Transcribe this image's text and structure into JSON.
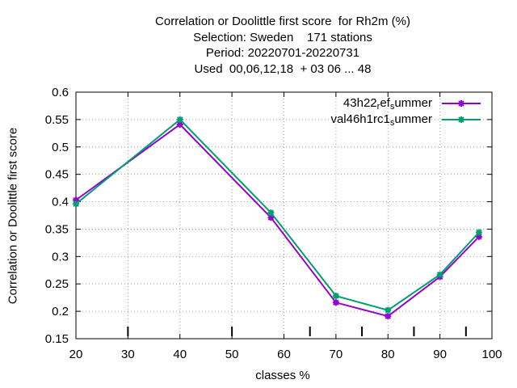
{
  "title": {
    "lines": [
      "Correlation or Doolittle first score  for Rh2m (%)",
      "Selection: Sweden    171 stations",
      "Period: 20220701-20220731",
      "Used  00,06,12,18  + 03 06 ... 48"
    ]
  },
  "legend": [
    {
      "prefix": "43h22",
      "sub1": "r",
      "mid": "ef",
      "sub2": "s",
      "suffix": "ummer",
      "color": "#9400d3"
    },
    {
      "prefix": "val46h1rc1",
      "sub1": "",
      "mid": "",
      "sub2": "s",
      "suffix": "ummer",
      "color": "#009e73"
    }
  ],
  "chart_data": {
    "type": "line",
    "title": "Correlation or Doolittle first score  for Rh2m (%)",
    "xlabel": "classes %",
    "ylabel": "Correlation or Doolittle first score",
    "xlim": [
      20,
      100
    ],
    "ylim": [
      0.15,
      0.6
    ],
    "xticks": [
      20,
      30,
      40,
      50,
      60,
      70,
      80,
      90,
      100
    ],
    "yticks": [
      0.15,
      0.2,
      0.25,
      0.3,
      0.35,
      0.4,
      0.45,
      0.5,
      0.55,
      0.6
    ],
    "grid": true,
    "legend_position": "top-right",
    "minor_ticks_bottom": [
      30,
      50,
      65,
      75,
      85,
      95
    ],
    "series": [
      {
        "name": "43h22_ref_summer",
        "color": "#9400d3",
        "x": [
          20,
          40,
          57.5,
          70,
          80,
          90,
          97.5
        ],
        "y": [
          0.403,
          0.541,
          0.371,
          0.216,
          0.191,
          0.263,
          0.336
        ]
      },
      {
        "name": "val46h1rc1_summer",
        "color": "#009e73",
        "x": [
          20,
          40,
          57.5,
          70,
          80,
          90,
          97.5
        ],
        "y": [
          0.396,
          0.55,
          0.38,
          0.228,
          0.202,
          0.267,
          0.344
        ]
      }
    ]
  }
}
